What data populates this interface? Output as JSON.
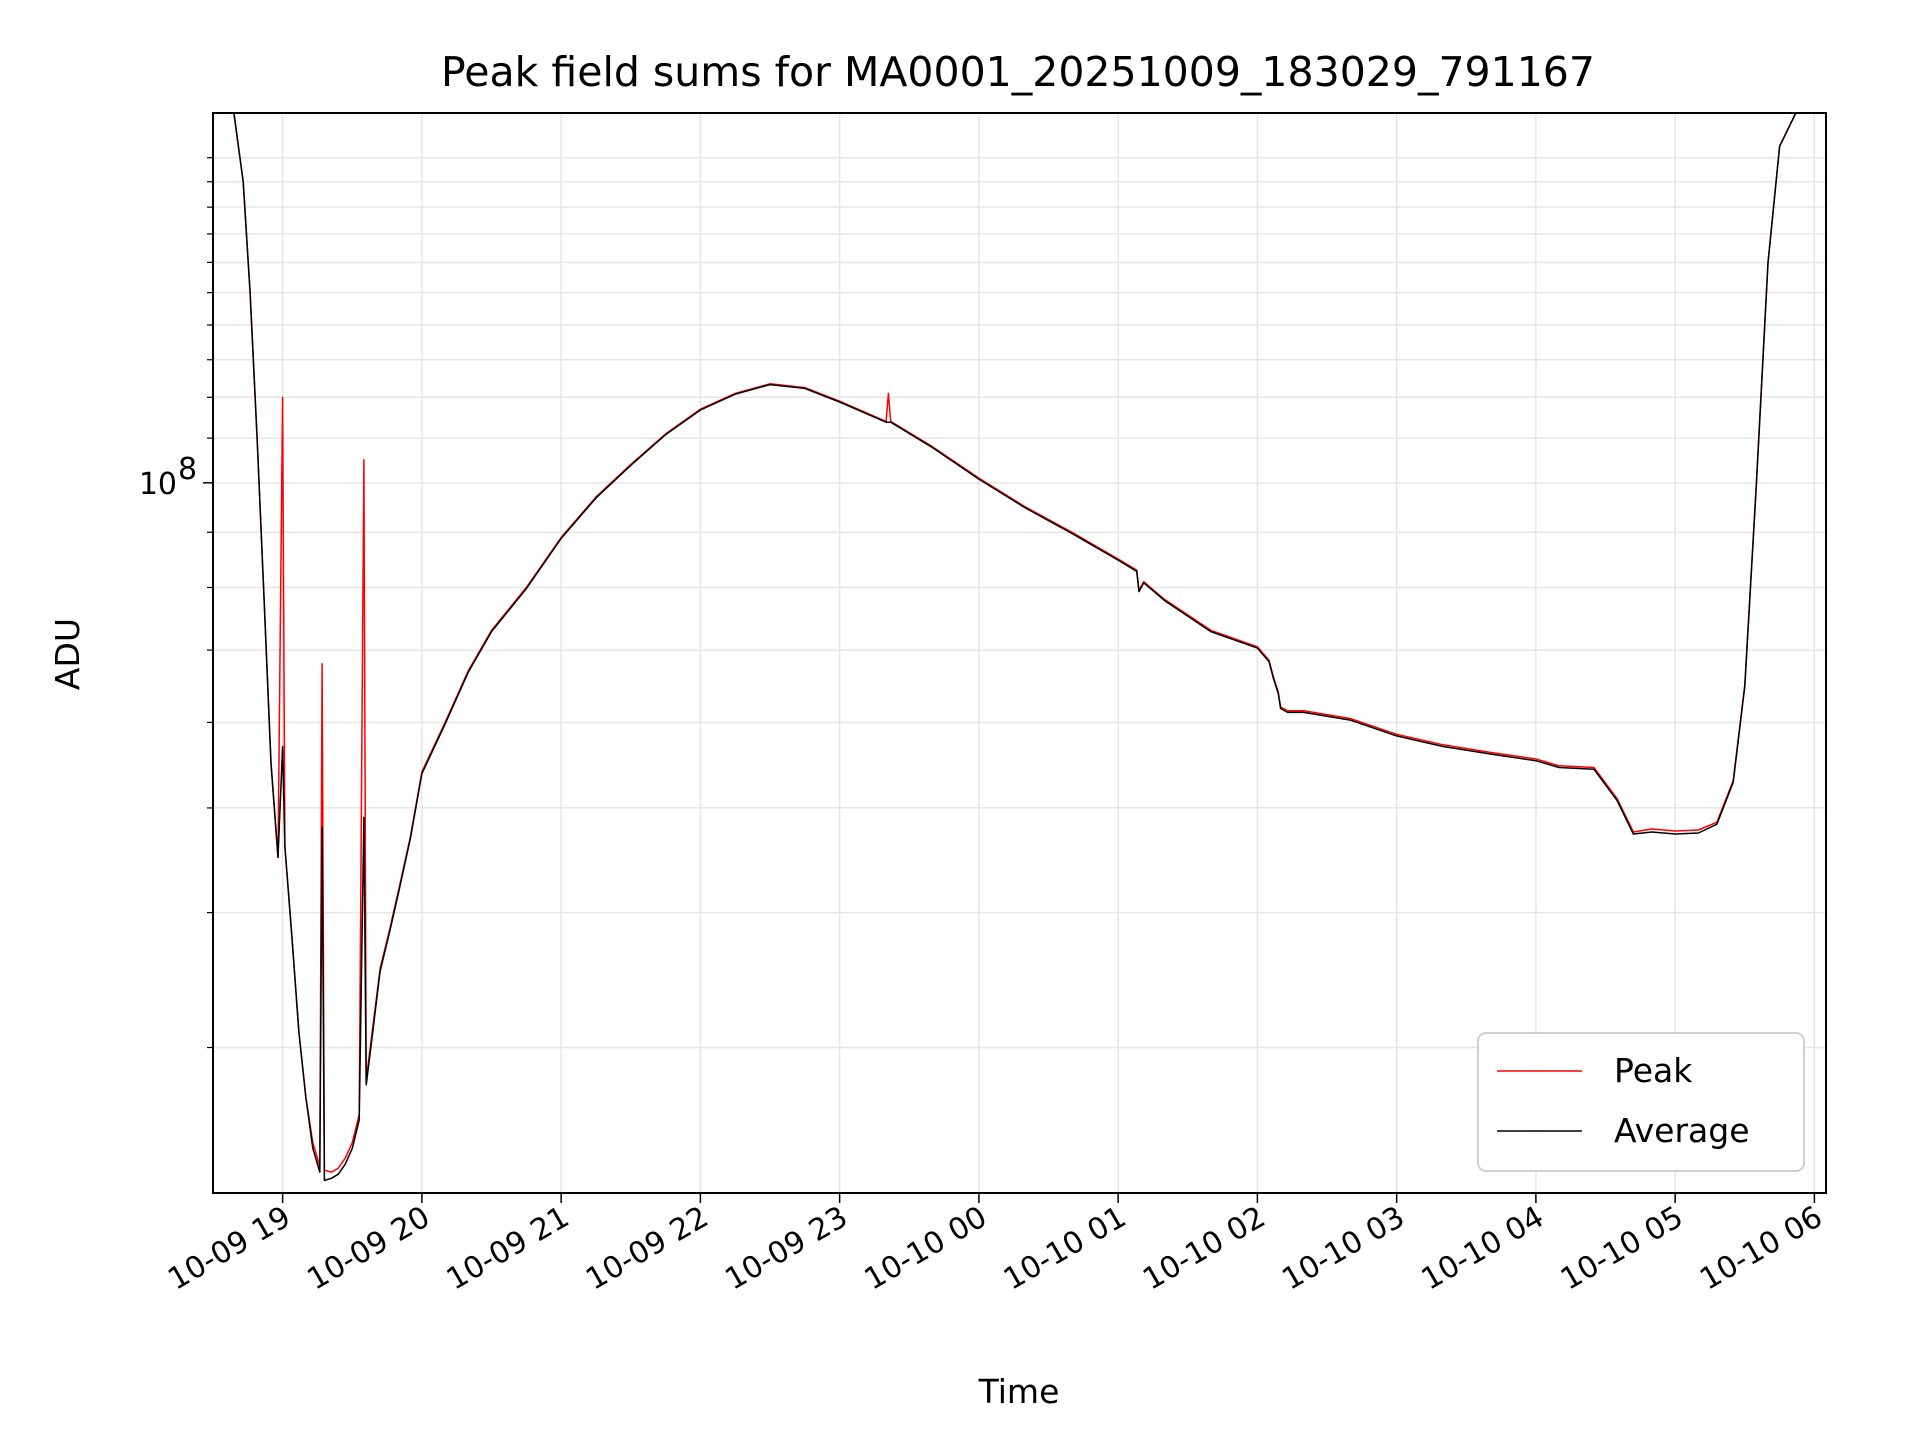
{
  "chart_data": {
    "type": "line",
    "title": "Peak field sums for MA0001_20251009_183029_791167",
    "xlabel": "Time",
    "ylabel": "ADU",
    "x_axis": "time",
    "y_scale": "log",
    "grid": true,
    "legend_position": "lower-right",
    "xlim": [
      "2025-10-09 18:30",
      "2025-10-10 06:05"
    ],
    "ylim": [
      22000000,
      220000000
    ],
    "x_tick_labels": [
      "10-09 19",
      "10-09 20",
      "10-09 21",
      "10-09 22",
      "10-09 23",
      "10-10 00",
      "10-10 01",
      "10-10 02",
      "10-10 03",
      "10-10 04",
      "10-10 05",
      "10-10 06"
    ],
    "y_tick_labels": [
      {
        "value": 100000000,
        "label": "10",
        "exponent": "8"
      }
    ],
    "series": [
      {
        "name": "Peak",
        "color": "#ff0000",
        "points": [
          [
            "2025-10-09 18:30",
            220000000
          ],
          [
            "2025-10-09 18:39",
            220000000
          ],
          [
            "2025-10-09 18:43",
            190000000
          ],
          [
            "2025-10-09 18:46",
            150000000
          ],
          [
            "2025-10-09 18:49",
            110000000
          ],
          [
            "2025-10-09 18:52",
            78000000
          ],
          [
            "2025-10-09 18:55",
            55000000
          ],
          [
            "2025-10-09 18:58",
            45000000
          ],
          [
            "2025-10-09 19:00",
            120000000
          ],
          [
            "2025-10-09 19:01",
            46000000
          ],
          [
            "2025-10-09 19:04",
            38000000
          ],
          [
            "2025-10-09 19:07",
            31000000
          ],
          [
            "2025-10-09 19:10",
            27000000
          ],
          [
            "2025-10-09 19:13",
            24500000
          ],
          [
            "2025-10-09 19:16",
            23300000
          ],
          [
            "2025-10-09 19:17",
            68000000
          ],
          [
            "2025-10-09 19:18",
            23100000
          ],
          [
            "2025-10-09 19:21",
            23000000
          ],
          [
            "2025-10-09 19:24",
            23200000
          ],
          [
            "2025-10-09 19:27",
            23700000
          ],
          [
            "2025-10-09 19:30",
            24500000
          ],
          [
            "2025-10-09 19:33",
            26000000
          ],
          [
            "2025-10-09 19:35",
            105000000
          ],
          [
            "2025-10-09 19:36",
            28000000
          ],
          [
            "2025-10-09 19:39",
            31500000
          ],
          [
            "2025-10-09 19:42",
            35500000
          ],
          [
            "2025-10-09 19:46",
            38500000
          ],
          [
            "2025-10-09 19:50",
            42000000
          ],
          [
            "2025-10-09 19:55",
            47000000
          ],
          [
            "2025-10-09 20:00",
            54000000
          ],
          [
            "2025-10-09 20:10",
            60000000
          ],
          [
            "2025-10-09 20:20",
            67000000
          ],
          [
            "2025-10-09 20:30",
            73000000
          ],
          [
            "2025-10-09 20:45",
            80000000
          ],
          [
            "2025-10-09 21:00",
            89000000
          ],
          [
            "2025-10-09 21:15",
            97000000
          ],
          [
            "2025-10-09 21:30",
            104000000
          ],
          [
            "2025-10-09 21:45",
            111000000
          ],
          [
            "2025-10-09 22:00",
            117000000
          ],
          [
            "2025-10-09 22:15",
            121000000
          ],
          [
            "2025-10-09 22:30",
            123500000
          ],
          [
            "2025-10-09 22:45",
            122500000
          ],
          [
            "2025-10-09 23:00",
            119000000
          ],
          [
            "2025-10-09 23:20",
            114000000
          ],
          [
            "2025-10-09 23:21",
            121000000
          ],
          [
            "2025-10-09 23:22",
            114000000
          ],
          [
            "2025-10-09 23:40",
            108000000
          ],
          [
            "2025-10-10 00:00",
            101000000
          ],
          [
            "2025-10-10 00:20",
            95000000
          ],
          [
            "2025-10-10 00:40",
            90000000
          ],
          [
            "2025-10-10 01:00",
            85000000
          ],
          [
            "2025-10-10 01:08",
            83000000
          ],
          [
            "2025-10-10 01:09",
            79500000
          ],
          [
            "2025-10-10 01:11",
            81000000
          ],
          [
            "2025-10-10 01:20",
            78000000
          ],
          [
            "2025-10-10 01:40",
            73000000
          ],
          [
            "2025-10-10 02:00",
            70500000
          ],
          [
            "2025-10-10 02:05",
            68500000
          ],
          [
            "2025-10-10 02:07",
            66000000
          ],
          [
            "2025-10-10 02:09",
            64000000
          ],
          [
            "2025-10-10 02:10",
            62000000
          ],
          [
            "2025-10-10 02:13",
            61500000
          ],
          [
            "2025-10-10 02:20",
            61500000
          ],
          [
            "2025-10-10 02:40",
            60500000
          ],
          [
            "2025-10-10 03:00",
            58500000
          ],
          [
            "2025-10-10 03:20",
            57200000
          ],
          [
            "2025-10-10 03:40",
            56300000
          ],
          [
            "2025-10-10 04:00",
            55500000
          ],
          [
            "2025-10-10 04:10",
            54700000
          ],
          [
            "2025-10-10 04:25",
            54500000
          ],
          [
            "2025-10-10 04:35",
            51000000
          ],
          [
            "2025-10-10 04:42",
            47500000
          ],
          [
            "2025-10-10 04:50",
            47800000
          ],
          [
            "2025-10-10 05:00",
            47600000
          ],
          [
            "2025-10-10 05:10",
            47700000
          ],
          [
            "2025-10-10 05:18",
            48500000
          ],
          [
            "2025-10-10 05:25",
            53000000
          ],
          [
            "2025-10-10 05:30",
            65000000
          ],
          [
            "2025-10-10 05:35",
            100000000
          ],
          [
            "2025-10-10 05:40",
            160000000
          ],
          [
            "2025-10-10 05:45",
            205000000
          ],
          [
            "2025-10-10 05:52",
            220000000
          ],
          [
            "2025-10-10 06:05",
            220000000
          ]
        ]
      },
      {
        "name": "Average",
        "color": "#000000",
        "points": [
          [
            "2025-10-09 18:30",
            220000000
          ],
          [
            "2025-10-09 18:39",
            220000000
          ],
          [
            "2025-10-09 18:43",
            190000000
          ],
          [
            "2025-10-09 18:46",
            150000000
          ],
          [
            "2025-10-09 18:49",
            110000000
          ],
          [
            "2025-10-09 18:52",
            78000000
          ],
          [
            "2025-10-09 18:55",
            55000000
          ],
          [
            "2025-10-09 18:58",
            45000000
          ],
          [
            "2025-10-09 19:00",
            57000000
          ],
          [
            "2025-10-09 19:01",
            46000000
          ],
          [
            "2025-10-09 19:04",
            38000000
          ],
          [
            "2025-10-09 19:07",
            31000000
          ],
          [
            "2025-10-09 19:10",
            27000000
          ],
          [
            "2025-10-09 19:13",
            24200000
          ],
          [
            "2025-10-09 19:16",
            23000000
          ],
          [
            "2025-10-09 19:17",
            48000000
          ],
          [
            "2025-10-09 19:18",
            22600000
          ],
          [
            "2025-10-09 19:21",
            22700000
          ],
          [
            "2025-10-09 19:24",
            22900000
          ],
          [
            "2025-10-09 19:27",
            23400000
          ],
          [
            "2025-10-09 19:30",
            24200000
          ],
          [
            "2025-10-09 19:33",
            25700000
          ],
          [
            "2025-10-09 19:35",
            49000000
          ],
          [
            "2025-10-09 19:36",
            27700000
          ],
          [
            "2025-10-09 19:39",
            31200000
          ],
          [
            "2025-10-09 19:42",
            35300000
          ],
          [
            "2025-10-09 19:46",
            38300000
          ],
          [
            "2025-10-09 19:50",
            41800000
          ],
          [
            "2025-10-09 19:55",
            46800000
          ],
          [
            "2025-10-09 20:00",
            53800000
          ],
          [
            "2025-10-09 20:10",
            59800000
          ],
          [
            "2025-10-09 20:20",
            66800000
          ],
          [
            "2025-10-09 20:30",
            72800000
          ],
          [
            "2025-10-09 20:45",
            79800000
          ],
          [
            "2025-10-09 21:00",
            88800000
          ],
          [
            "2025-10-09 21:15",
            96800000
          ],
          [
            "2025-10-09 21:30",
            103800000
          ],
          [
            "2025-10-09 21:45",
            110800000
          ],
          [
            "2025-10-09 22:00",
            116800000
          ],
          [
            "2025-10-09 22:15",
            120800000
          ],
          [
            "2025-10-09 22:30",
            123300000
          ],
          [
            "2025-10-09 22:45",
            122300000
          ],
          [
            "2025-10-09 23:00",
            118800000
          ],
          [
            "2025-10-09 23:20",
            113800000
          ],
          [
            "2025-10-09 23:21",
            113800000
          ],
          [
            "2025-10-09 23:22",
            113800000
          ],
          [
            "2025-10-09 23:40",
            107800000
          ],
          [
            "2025-10-10 00:00",
            100800000
          ],
          [
            "2025-10-10 00:20",
            94800000
          ],
          [
            "2025-10-10 00:40",
            89800000
          ],
          [
            "2025-10-10 01:00",
            84800000
          ],
          [
            "2025-10-10 01:08",
            82800000
          ],
          [
            "2025-10-10 01:09",
            79300000
          ],
          [
            "2025-10-10 01:11",
            80800000
          ],
          [
            "2025-10-10 01:20",
            77800000
          ],
          [
            "2025-10-10 01:40",
            72800000
          ],
          [
            "2025-10-10 02:00",
            70300000
          ],
          [
            "2025-10-10 02:05",
            68300000
          ],
          [
            "2025-10-10 02:07",
            65800000
          ],
          [
            "2025-10-10 02:09",
            63800000
          ],
          [
            "2025-10-10 02:10",
            61800000
          ],
          [
            "2025-10-10 02:13",
            61300000
          ],
          [
            "2025-10-10 02:20",
            61300000
          ],
          [
            "2025-10-10 02:40",
            60300000
          ],
          [
            "2025-10-10 03:00",
            58300000
          ],
          [
            "2025-10-10 03:20",
            57000000
          ],
          [
            "2025-10-10 03:40",
            56100000
          ],
          [
            "2025-10-10 04:00",
            55300000
          ],
          [
            "2025-10-10 04:10",
            54500000
          ],
          [
            "2025-10-10 04:25",
            54300000
          ],
          [
            "2025-10-10 04:35",
            50800000
          ],
          [
            "2025-10-10 04:42",
            47300000
          ],
          [
            "2025-10-10 04:50",
            47500000
          ],
          [
            "2025-10-10 05:00",
            47300000
          ],
          [
            "2025-10-10 05:10",
            47400000
          ],
          [
            "2025-10-10 05:18",
            48300000
          ],
          [
            "2025-10-10 05:25",
            52800000
          ],
          [
            "2025-10-10 05:30",
            64800000
          ],
          [
            "2025-10-10 05:35",
            99800000
          ],
          [
            "2025-10-10 05:40",
            159800000
          ],
          [
            "2025-10-10 05:45",
            204800000
          ],
          [
            "2025-10-10 05:52",
            220000000
          ],
          [
            "2025-10-10 06:05",
            220000000
          ]
        ]
      }
    ]
  }
}
